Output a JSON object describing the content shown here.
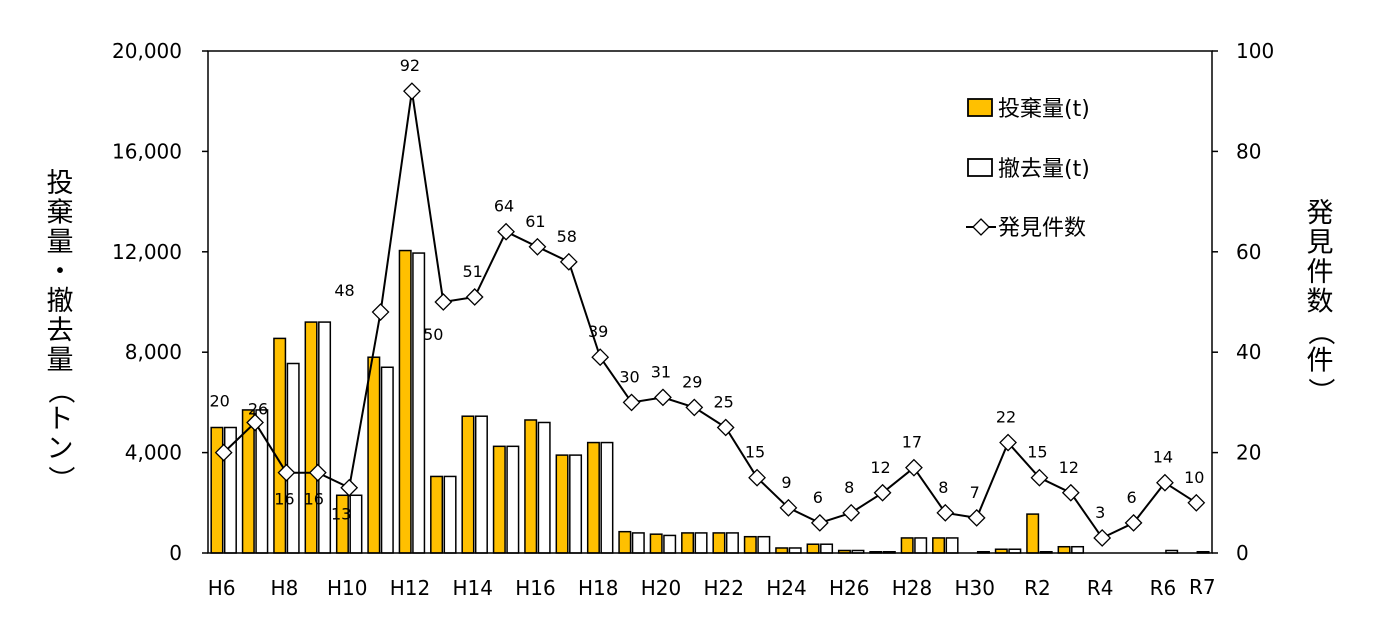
{
  "chart_data": {
    "type": "bar",
    "categories": [
      "H6",
      "H7",
      "H8",
      "H9",
      "H10",
      "H11",
      "H12",
      "H13",
      "H14",
      "H15",
      "H16",
      "H17",
      "H18",
      "H19",
      "H20",
      "H21",
      "H22",
      "H23",
      "H24",
      "H25",
      "H26",
      "H27",
      "H28",
      "H29",
      "H30",
      "R1",
      "R2",
      "R3",
      "R4",
      "R5",
      "R6",
      "R7"
    ],
    "x_tick_labels": [
      "H6",
      "",
      "H8",
      "",
      "H10",
      "",
      "H12",
      "",
      "H14",
      "",
      "H16",
      "",
      "H18",
      "",
      "H20",
      "",
      "H22",
      "",
      "H24",
      "",
      "H26",
      "",
      "H28",
      "",
      "H30",
      "",
      "R2",
      "",
      "R4",
      "",
      "R6",
      "R7"
    ],
    "series": [
      {
        "name": "投棄量(t)",
        "kind": "bar",
        "axis": "left",
        "color": "#FFC000",
        "values": [
          5000,
          5700,
          8550,
          9200,
          2300,
          7800,
          12050,
          3050,
          5450,
          4250,
          5300,
          3900,
          4400,
          850,
          750,
          800,
          800,
          650,
          200,
          350,
          100,
          50,
          600,
          600,
          0,
          150,
          1550,
          250,
          0,
          0,
          0,
          0
        ]
      },
      {
        "name": "撤去量(t)",
        "kind": "bar",
        "axis": "left",
        "color": "#FFFFFF",
        "values": [
          5000,
          5700,
          7550,
          9200,
          2300,
          7400,
          11950,
          3050,
          5450,
          4250,
          5200,
          3900,
          4400,
          800,
          700,
          800,
          800,
          650,
          200,
          350,
          100,
          50,
          600,
          600,
          50,
          150,
          50,
          250,
          0,
          0,
          100,
          50
        ]
      },
      {
        "name": "発見件数",
        "kind": "line",
        "axis": "right",
        "color": "#000000",
        "values": [
          20,
          26,
          16,
          16,
          13,
          48,
          92,
          50,
          51,
          64,
          61,
          58,
          39,
          30,
          31,
          29,
          25,
          15,
          9,
          6,
          8,
          12,
          17,
          8,
          7,
          22,
          15,
          12,
          3,
          6,
          14,
          10
        ]
      }
    ],
    "y_left": {
      "label": "投棄量・撤去量（トン）",
      "min": 0,
      "max": 20000,
      "ticks": [
        "0",
        "4,000",
        "8,000",
        "12,000",
        "16,000",
        "20,000"
      ]
    },
    "y_right": {
      "label": "発見件数（件）",
      "min": 0,
      "max": 100,
      "ticks": [
        "0",
        "20",
        "40",
        "60",
        "80",
        "100"
      ]
    },
    "legend": {
      "position": "top-right"
    }
  }
}
